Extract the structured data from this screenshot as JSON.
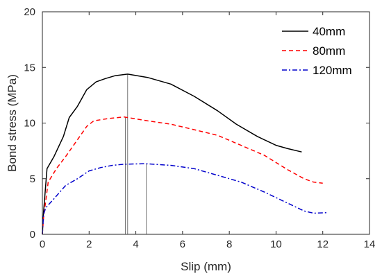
{
  "chart_data": {
    "type": "line",
    "xlabel": "Slip (mm)",
    "ylabel": "Bond stress (MPa)",
    "xlim": [
      0,
      14
    ],
    "ylim": [
      0,
      20
    ],
    "xticks": [
      0,
      2,
      4,
      6,
      8,
      10,
      12,
      14
    ],
    "yticks": [
      0,
      5,
      10,
      15,
      20
    ],
    "legend_position": "top-right",
    "grid": false,
    "series": [
      {
        "name": "40mm",
        "color": "#000000",
        "dash": "solid",
        "points": [
          [
            0,
            0
          ],
          [
            0.05,
            2.0
          ],
          [
            0.2,
            5.9
          ],
          [
            0.5,
            7.0
          ],
          [
            0.9,
            8.8
          ],
          [
            1.15,
            10.5
          ],
          [
            1.5,
            11.5
          ],
          [
            1.9,
            13.0
          ],
          [
            2.3,
            13.7
          ],
          [
            2.7,
            14.0
          ],
          [
            3.1,
            14.25
          ],
          [
            3.65,
            14.4
          ],
          [
            4.5,
            14.1
          ],
          [
            5.5,
            13.5
          ],
          [
            6.5,
            12.4
          ],
          [
            7.5,
            11.1
          ],
          [
            8.3,
            9.9
          ],
          [
            9.2,
            8.8
          ],
          [
            10.0,
            8.0
          ],
          [
            10.5,
            7.7
          ],
          [
            11.1,
            7.4
          ]
        ]
      },
      {
        "name": "80mm",
        "color": "#ff0000",
        "dash": "dashed",
        "points": [
          [
            0,
            0
          ],
          [
            0.05,
            1.5
          ],
          [
            0.25,
            4.7
          ],
          [
            0.6,
            5.9
          ],
          [
            1.0,
            7.0
          ],
          [
            1.5,
            8.5
          ],
          [
            1.9,
            9.7
          ],
          [
            2.2,
            10.2
          ],
          [
            2.8,
            10.4
          ],
          [
            3.5,
            10.55
          ],
          [
            4.5,
            10.2
          ],
          [
            5.5,
            9.9
          ],
          [
            6.5,
            9.4
          ],
          [
            7.5,
            8.9
          ],
          [
            8.5,
            8.0
          ],
          [
            9.5,
            7.1
          ],
          [
            10.5,
            5.8
          ],
          [
            11.2,
            5.0
          ],
          [
            11.6,
            4.7
          ],
          [
            12.0,
            4.6
          ]
        ]
      },
      {
        "name": "120mm",
        "color": "#0000cc",
        "dash": "dashdot",
        "points": [
          [
            0,
            0
          ],
          [
            0.05,
            1.8
          ],
          [
            0.15,
            2.4
          ],
          [
            0.5,
            3.2
          ],
          [
            1.0,
            4.4
          ],
          [
            1.5,
            5.0
          ],
          [
            2.0,
            5.7
          ],
          [
            2.5,
            6.0
          ],
          [
            3.0,
            6.2
          ],
          [
            3.5,
            6.3
          ],
          [
            4.4,
            6.35
          ],
          [
            5.5,
            6.2
          ],
          [
            6.5,
            5.9
          ],
          [
            7.5,
            5.3
          ],
          [
            8.5,
            4.7
          ],
          [
            9.5,
            3.8
          ],
          [
            10.5,
            2.8
          ],
          [
            11.2,
            2.1
          ],
          [
            11.6,
            1.9
          ],
          [
            12.2,
            1.95
          ]
        ]
      }
    ],
    "guide_lines": [
      {
        "x": 3.55,
        "y": 10.55
      },
      {
        "x": 3.65,
        "y": 14.4
      },
      {
        "x": 4.45,
        "y": 6.35
      }
    ]
  }
}
